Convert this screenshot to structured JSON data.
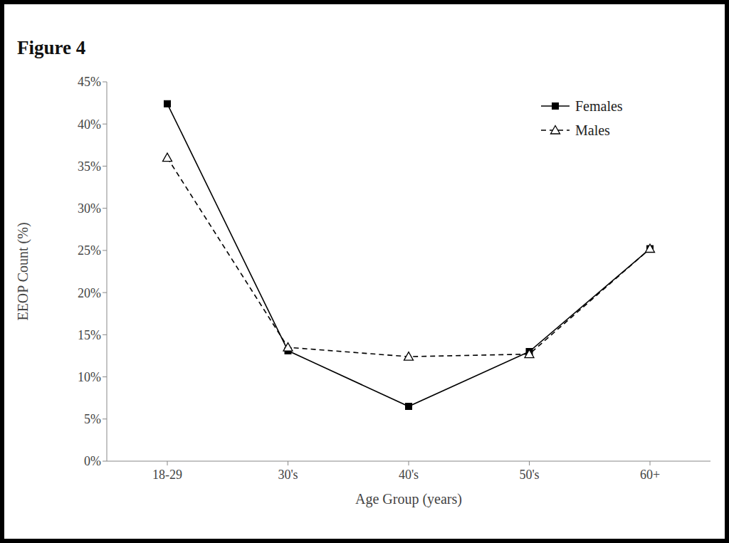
{
  "chart_data": {
    "type": "line",
    "title": "Figure 4",
    "x_label": "Age Group (years)",
    "y_label": "EEOP Count (%)",
    "categories": [
      "18-29",
      "30's",
      "40's",
      "50's",
      "60+"
    ],
    "series": [
      {
        "name": "Females",
        "color": "#000000",
        "marker": "square",
        "line_style": "solid",
        "values": [
          42.4,
          13.1,
          6.5,
          13.0,
          25.2
        ]
      },
      {
        "name": "Males",
        "color": "#000000",
        "marker": "triangle",
        "line_style": "dashed",
        "values": [
          36.0,
          13.5,
          12.4,
          12.7,
          25.2
        ]
      }
    ],
    "ylim": [
      0,
      45
    ],
    "yticks": [
      {
        "value": 0,
        "label": "0%"
      },
      {
        "value": 5,
        "label": "5%"
      },
      {
        "value": 10,
        "label": "10%"
      },
      {
        "value": 15,
        "label": "15%"
      },
      {
        "value": 20,
        "label": "20%"
      },
      {
        "value": 25,
        "label": "25%"
      },
      {
        "value": 30,
        "label": "30%"
      },
      {
        "value": 35,
        "label": "35%"
      },
      {
        "value": 40,
        "label": "40%"
      },
      {
        "value": 45,
        "label": "45%"
      }
    ],
    "grid": false,
    "legend": "upper right"
  }
}
